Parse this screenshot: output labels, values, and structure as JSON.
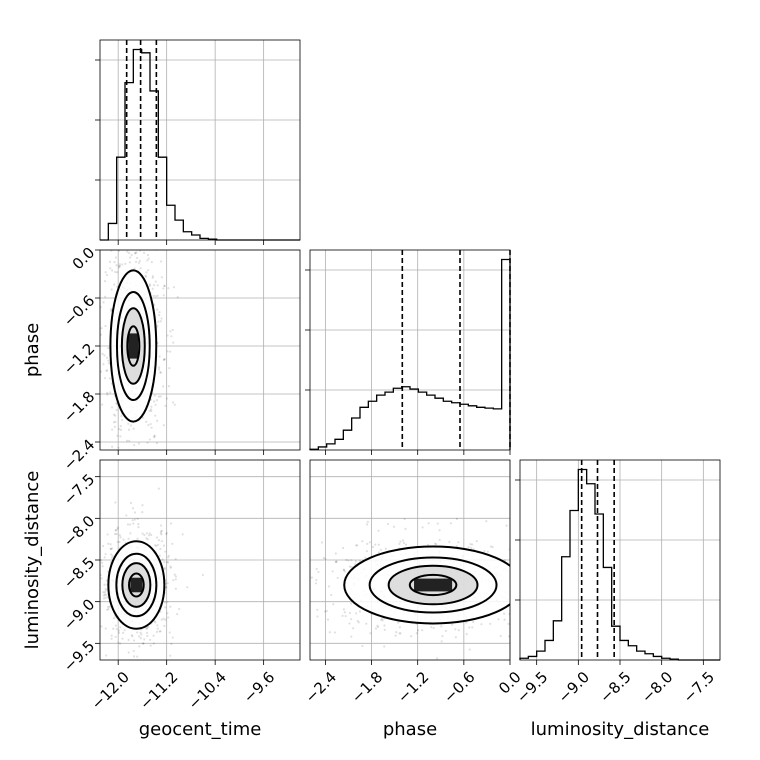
{
  "chart_data": {
    "type": "corner",
    "parameters": [
      "geocent_time",
      "phase",
      "luminosity_distance"
    ],
    "grid": true,
    "panels": [
      {
        "kind": "hist",
        "param": "geocent_time",
        "range": [
          -12.3,
          -9.0
        ],
        "bins": 24,
        "values": [
          0,
          1.0,
          5.0,
          9.5,
          11.5,
          11.3,
          9.0,
          5.0,
          2.1,
          1.2,
          0.5,
          0.3,
          0.1,
          0.05,
          0,
          0,
          0,
          0,
          0,
          0,
          0,
          0,
          0,
          0
        ],
        "quantiles": [
          -11.86,
          -11.63,
          -11.37
        ]
      },
      {
        "kind": "hist",
        "param": "phase",
        "range": [
          -2.6,
          0.0
        ],
        "bins": 24,
        "values": [
          0.05,
          0.2,
          0.4,
          0.7,
          1.3,
          2.1,
          2.8,
          3.2,
          3.6,
          3.8,
          4.05,
          4.15,
          4.0,
          3.8,
          3.6,
          3.4,
          3.2,
          3.1,
          3.0,
          2.9,
          2.8,
          2.75,
          2.7,
          12.5
        ],
        "quantiles": [
          -1.4,
          -0.65,
          0.0
        ]
      },
      {
        "kind": "hist",
        "param": "luminosity_distance",
        "range": [
          -9.7,
          -7.3
        ],
        "bins": 24,
        "values": [
          0.1,
          0.2,
          0.5,
          1.1,
          2.2,
          5.8,
          8.4,
          10.7,
          9.9,
          8.2,
          5.2,
          1.9,
          1.1,
          0.8,
          0.5,
          0.35,
          0.2,
          0.1,
          0.05,
          0,
          0,
          0,
          0,
          0
        ],
        "quantiles": [
          -8.96,
          -8.77,
          -8.57
        ]
      },
      {
        "kind": "hist2d",
        "x": "geocent_time",
        "y": "phase",
        "xlim": [
          -12.3,
          -9.0
        ],
        "ylim": [
          -2.5,
          0.0
        ],
        "mean": [
          -11.75,
          -1.2
        ],
        "spread": [
          0.18,
          0.45
        ]
      },
      {
        "kind": "hist2d",
        "x": "geocent_time",
        "y": "luminosity_distance",
        "xlim": [
          -12.3,
          -9.0
        ],
        "ylim": [
          -9.7,
          -7.3
        ],
        "mean": [
          -11.7,
          -8.8
        ],
        "spread": [
          0.22,
          0.25
        ]
      },
      {
        "kind": "hist2d",
        "x": "phase",
        "y": "luminosity_distance",
        "xlim": [
          -2.6,
          0.0
        ],
        "ylim": [
          -9.7,
          -7.3
        ],
        "mean": [
          -1.0,
          -8.8
        ],
        "spread": [
          0.55,
          0.22
        ]
      }
    ],
    "axes": {
      "geocent_time": {
        "label": "geocent_time",
        "ticks": [
          -12.0,
          -11.2,
          -10.4,
          -9.6
        ],
        "tick_labels": [
          "−12.0",
          "−11.2",
          "−10.4",
          "−9.6"
        ]
      },
      "phase": {
        "label": "phase",
        "ticks": [
          -2.4,
          -1.8,
          -1.2,
          -0.6,
          0.0
        ],
        "tick_labels": [
          "−2.4",
          "−1.8",
          "−1.2",
          "−0.6",
          "0.0"
        ]
      },
      "luminosity_distance": {
        "label": "luminosity_distance",
        "ticks": [
          -9.5,
          -9.0,
          -8.5,
          -8.0,
          -7.5
        ],
        "tick_labels": [
          "−9.5",
          "−9.0",
          "−8.5",
          "−8.0",
          "−7.5"
        ]
      }
    }
  }
}
